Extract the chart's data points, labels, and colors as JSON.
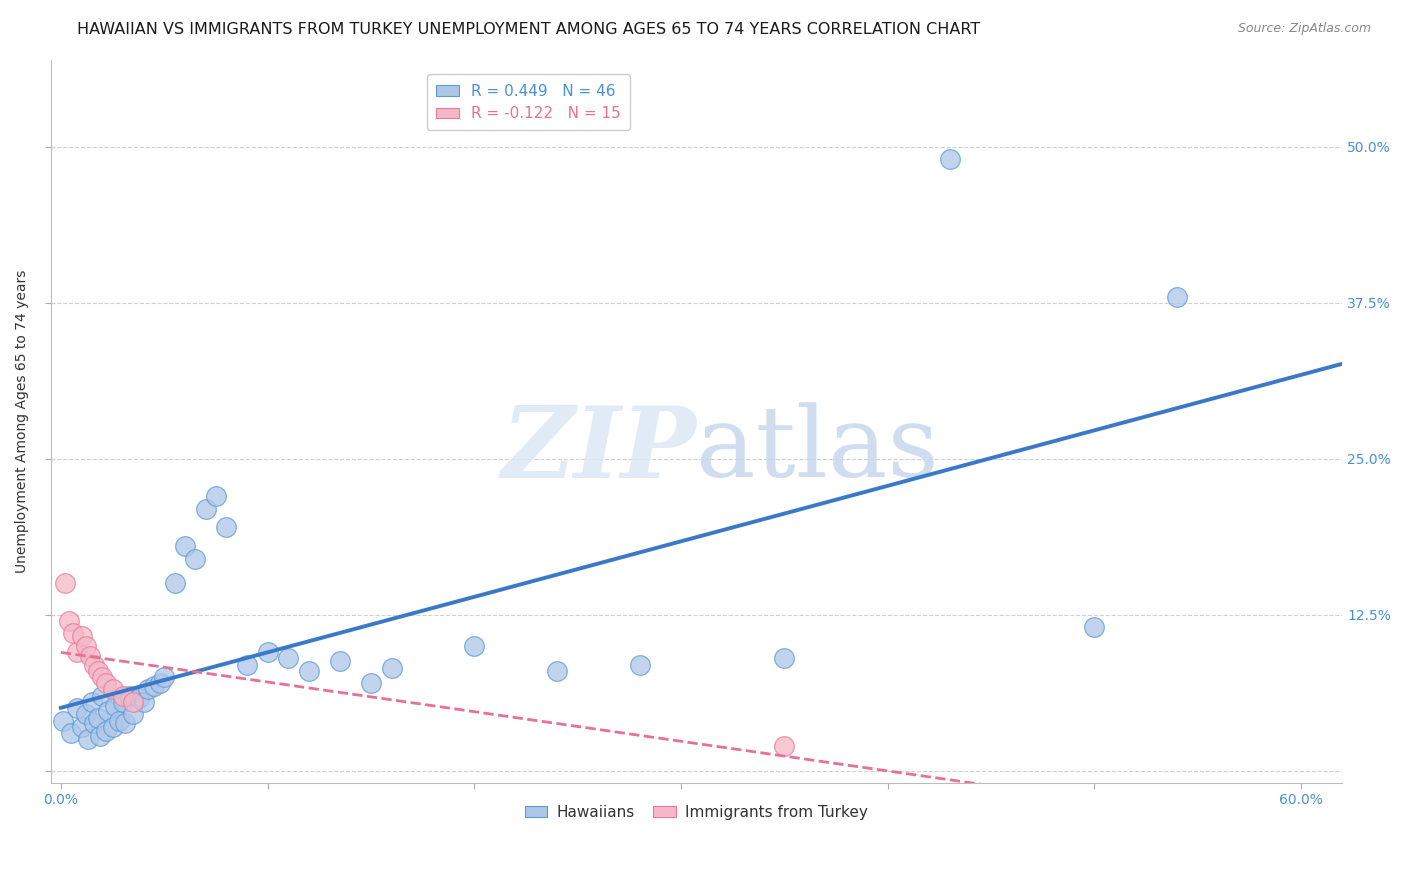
{
  "title": "HAWAIIAN VS IMMIGRANTS FROM TURKEY UNEMPLOYMENT AMONG AGES 65 TO 74 YEARS CORRELATION CHART",
  "source": "Source: ZipAtlas.com",
  "ylabel": "Unemployment Among Ages 65 to 74 years",
  "xlim": [
    -0.005,
    0.62
  ],
  "ylim": [
    -0.01,
    0.57
  ],
  "xticks": [
    0.0,
    0.1,
    0.2,
    0.3,
    0.4,
    0.5,
    0.6
  ],
  "xticklabels": [
    "0.0%",
    "",
    "",
    "",
    "",
    "",
    "60.0%"
  ],
  "yticks": [
    0.0,
    0.125,
    0.25,
    0.375,
    0.5
  ],
  "yticklabels": [
    "",
    "12.5%",
    "25.0%",
    "37.5%",
    "50.0%"
  ],
  "hawaiian_R": 0.449,
  "hawaiian_N": 46,
  "turkey_R": -0.122,
  "turkey_N": 15,
  "hawaiian_color": "#aec6e8",
  "turkey_color": "#f4b8c8",
  "hawaiian_edge_color": "#5b9bd5",
  "turkey_edge_color": "#e8799a",
  "hawaiian_line_color": "#3a78c9",
  "turkey_line_color": "#e87090",
  "background_color": "#ffffff",
  "grid_color": "#d0d0d0",
  "hawaiian_x": [
    0.001,
    0.005,
    0.008,
    0.01,
    0.012,
    0.013,
    0.015,
    0.016,
    0.018,
    0.019,
    0.02,
    0.022,
    0.023,
    0.025,
    0.026,
    0.028,
    0.03,
    0.031,
    0.033,
    0.035,
    0.038,
    0.04,
    0.042,
    0.045,
    0.048,
    0.05,
    0.055,
    0.06,
    0.065,
    0.07,
    0.075,
    0.08,
    0.09,
    0.1,
    0.11,
    0.12,
    0.135,
    0.15,
    0.16,
    0.2,
    0.24,
    0.28,
    0.35,
    0.43,
    0.5,
    0.54
  ],
  "hawaiian_y": [
    0.04,
    0.03,
    0.05,
    0.035,
    0.045,
    0.025,
    0.055,
    0.038,
    0.042,
    0.028,
    0.06,
    0.032,
    0.048,
    0.035,
    0.052,
    0.04,
    0.055,
    0.038,
    0.06,
    0.045,
    0.058,
    0.055,
    0.065,
    0.068,
    0.07,
    0.075,
    0.15,
    0.18,
    0.17,
    0.21,
    0.22,
    0.195,
    0.085,
    0.095,
    0.09,
    0.08,
    0.088,
    0.07,
    0.082,
    0.1,
    0.08,
    0.085,
    0.09,
    0.49,
    0.115,
    0.38
  ],
  "turkey_x": [
    0.002,
    0.004,
    0.006,
    0.008,
    0.01,
    0.012,
    0.014,
    0.016,
    0.018,
    0.02,
    0.022,
    0.025,
    0.03,
    0.035,
    0.35
  ],
  "turkey_y": [
    0.15,
    0.12,
    0.11,
    0.095,
    0.108,
    0.1,
    0.092,
    0.085,
    0.08,
    0.075,
    0.07,
    0.065,
    0.06,
    0.055,
    0.02
  ],
  "watermark_zip": "ZIP",
  "watermark_atlas": "atlas",
  "title_fontsize": 11.5,
  "axis_label_fontsize": 10,
  "tick_fontsize": 10,
  "legend_fontsize": 11
}
